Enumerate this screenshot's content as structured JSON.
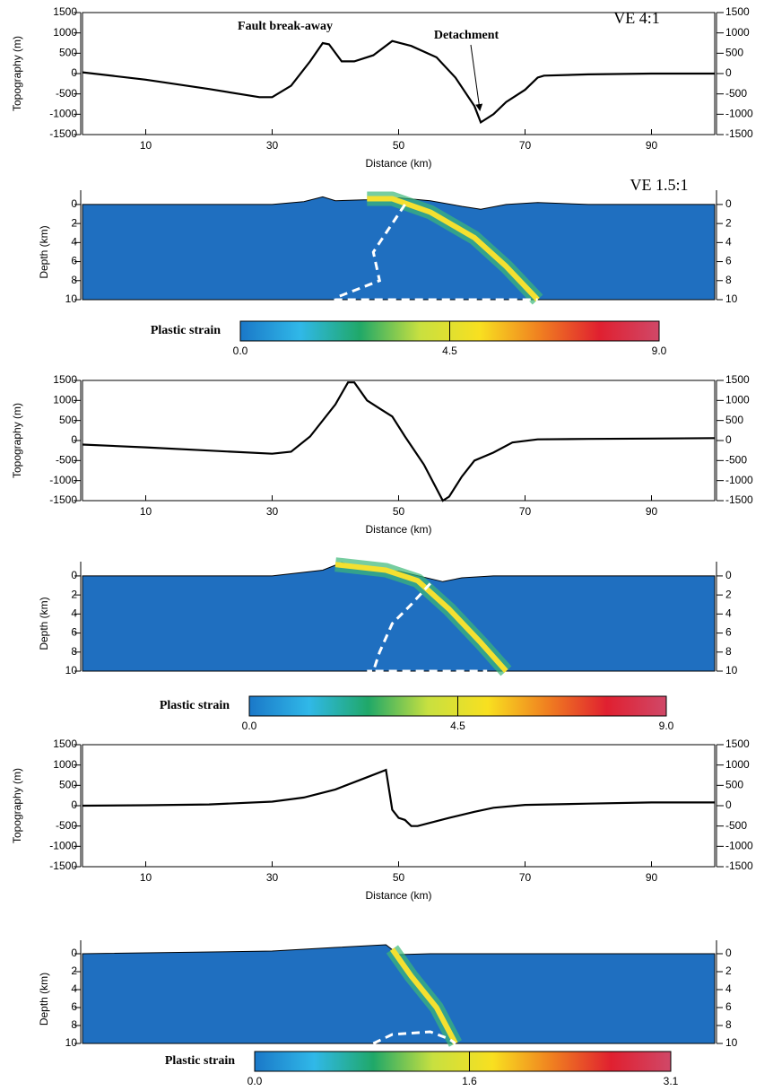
{
  "chart_data": [
    {
      "type": "line",
      "xlabel": "Distance (km)",
      "ylabel": "Topography (m)",
      "annotations": [
        "Fault break-away",
        "Detachment",
        "VE 4:1"
      ],
      "x": [
        0,
        10,
        20,
        28,
        30,
        33,
        36,
        38,
        39,
        41,
        43,
        46,
        49,
        52,
        56,
        59,
        62,
        63,
        65,
        67,
        70,
        72,
        73,
        80,
        90,
        100
      ],
      "values": [
        30,
        -150,
        -380,
        -580,
        -580,
        -300,
        300,
        750,
        720,
        300,
        300,
        450,
        800,
        680,
        400,
        -100,
        -800,
        -1200,
        -1000,
        -700,
        -400,
        -100,
        -50,
        -20,
        0,
        0
      ],
      "color": "#000000",
      "xlim": [
        0,
        100
      ],
      "xticks": [
        10,
        30,
        50,
        70,
        90
      ],
      "ylim": [
        -1500,
        1500
      ],
      "yticks": [
        -1500,
        -1000,
        -500,
        0,
        500,
        1000,
        1500
      ]
    },
    {
      "type": "section",
      "ylabel": "Depth (km)",
      "annotations": [
        "VE 1.5:1"
      ],
      "color": "#1f6fc0",
      "x": [
        0,
        30,
        35,
        38,
        40,
        45,
        50,
        55,
        60,
        63,
        67,
        72,
        80,
        100
      ],
      "values": [
        0,
        0,
        -0.3,
        -0.8,
        -0.4,
        -0.5,
        -0.7,
        -0.4,
        0.2,
        0.5,
        0,
        -0.2,
        0,
        0
      ],
      "fault_x": [
        45,
        49,
        55,
        62,
        67,
        72
      ],
      "fault_depth": [
        -0.6,
        -0.6,
        0.8,
        3.5,
        6.5,
        10
      ],
      "outline_x": [
        51,
        48,
        46,
        47,
        40,
        40,
        72
      ],
      "outline_depth": [
        0,
        3,
        5,
        8,
        9.8,
        10,
        10
      ],
      "xlim": [
        0,
        100
      ],
      "ylim": [
        10,
        -1.5
      ],
      "yticks": [
        0,
        2,
        4,
        6,
        8,
        10
      ]
    },
    {
      "type": "colorbar",
      "label": "Plastic strain",
      "xlim": [
        0,
        9
      ],
      "ticks": [
        {
          "value": 0,
          "label": "0.0"
        },
        4.5,
        {
          "value": 9,
          "label": "9.0"
        }
      ],
      "colors": [
        "#1a78c8",
        "#30b8e8",
        "#20a868",
        "#c8e040",
        "#f8e020",
        "#f08020",
        "#e02030",
        "#d04868"
      ]
    },
    {
      "type": "line",
      "xlabel": "Distance (km)",
      "ylabel": "Topography (m)",
      "x": [
        0,
        10,
        20,
        30,
        33,
        36,
        40,
        42,
        43,
        45,
        47,
        49,
        51,
        54,
        57,
        58,
        60,
        62,
        65,
        68,
        72,
        80,
        90,
        100
      ],
      "values": [
        -100,
        -170,
        -250,
        -330,
        -280,
        100,
        900,
        1450,
        1450,
        1000,
        800,
        600,
        100,
        -600,
        -1500,
        -1400,
        -900,
        -500,
        -300,
        -50,
        30,
        40,
        50,
        60
      ],
      "color": "#000000",
      "xlim": [
        0,
        100
      ],
      "xticks": [
        10,
        30,
        50,
        70,
        90
      ],
      "ylim": [
        -1500,
        1500
      ],
      "yticks": [
        -1500,
        -1000,
        -500,
        0,
        500,
        1000,
        1500
      ]
    },
    {
      "type": "section",
      "ylabel": "Depth (km)",
      "color": "#1f6fc0",
      "x": [
        0,
        30,
        38,
        41,
        45,
        50,
        57,
        60,
        65,
        100
      ],
      "values": [
        0,
        0,
        -0.6,
        -1.4,
        -0.8,
        -0.5,
        0.6,
        0.2,
        0,
        0
      ],
      "fault_x": [
        40,
        48,
        53,
        58,
        63,
        67
      ],
      "fault_depth": [
        -1.2,
        -0.6,
        0.5,
        3.5,
        7,
        10
      ],
      "outline_x": [
        55,
        52,
        49,
        47,
        46,
        45,
        64
      ],
      "outline_depth": [
        0.8,
        3,
        5,
        8,
        10,
        10,
        10
      ],
      "xlim": [
        0,
        100
      ],
      "ylim": [
        10,
        -1.5
      ],
      "yticks": [
        0,
        2,
        4,
        6,
        8,
        10
      ]
    },
    {
      "type": "colorbar",
      "label": "Plastic strain",
      "xlim": [
        0,
        9
      ],
      "ticks": [
        {
          "value": 0,
          "label": "0.0"
        },
        4.5,
        {
          "value": 9,
          "label": "9.0"
        }
      ],
      "colors": [
        "#1a78c8",
        "#30b8e8",
        "#20a868",
        "#c8e040",
        "#f8e020",
        "#f08020",
        "#e02030",
        "#d04868"
      ]
    },
    {
      "type": "line",
      "xlabel": "Distance (km)",
      "ylabel": "Topography (m)",
      "x": [
        0,
        10,
        20,
        30,
        35,
        40,
        45,
        48,
        49,
        50,
        51,
        52,
        53,
        58,
        62,
        65,
        70,
        80,
        90,
        100
      ],
      "values": [
        0,
        10,
        30,
        100,
        200,
        400,
        700,
        880,
        -100,
        -300,
        -350,
        -500,
        -500,
        -300,
        -150,
        -50,
        20,
        50,
        80,
        80
      ],
      "color": "#000000",
      "xlim": [
        0,
        100
      ],
      "xticks": [
        10,
        30,
        50,
        70,
        90
      ],
      "ylim": [
        -1500,
        1500
      ],
      "yticks": [
        -1500,
        -1000,
        -500,
        0,
        500,
        1000,
        1500
      ]
    },
    {
      "type": "section",
      "ylabel": "Depth (km)",
      "color": "#1f6fc0",
      "x": [
        0,
        30,
        40,
        48,
        50,
        55,
        70,
        100
      ],
      "values": [
        0,
        -0.3,
        -0.7,
        -1.0,
        0.1,
        0,
        0,
        0
      ],
      "fault_x": [
        49,
        52,
        56,
        59
      ],
      "fault_depth": [
        -0.5,
        2.5,
        6,
        10
      ],
      "outline_x": [
        46,
        49,
        55,
        58,
        59
      ],
      "outline_depth": [
        10,
        9,
        8.7,
        9.5,
        10
      ],
      "xlim": [
        0,
        100
      ],
      "ylim": [
        10,
        -1.5
      ],
      "yticks": [
        0,
        2,
        4,
        6,
        8,
        10
      ]
    },
    {
      "type": "colorbar",
      "label": "Plastic strain",
      "xlim": [
        0,
        3.1
      ],
      "ticks": [
        {
          "value": 0,
          "label": "0.0"
        },
        1.6,
        3.1
      ],
      "colors": [
        "#1a78c8",
        "#30b8e8",
        "#20a868",
        "#c8e040",
        "#f8e020",
        "#f08020",
        "#e02030",
        "#d04868"
      ]
    }
  ]
}
